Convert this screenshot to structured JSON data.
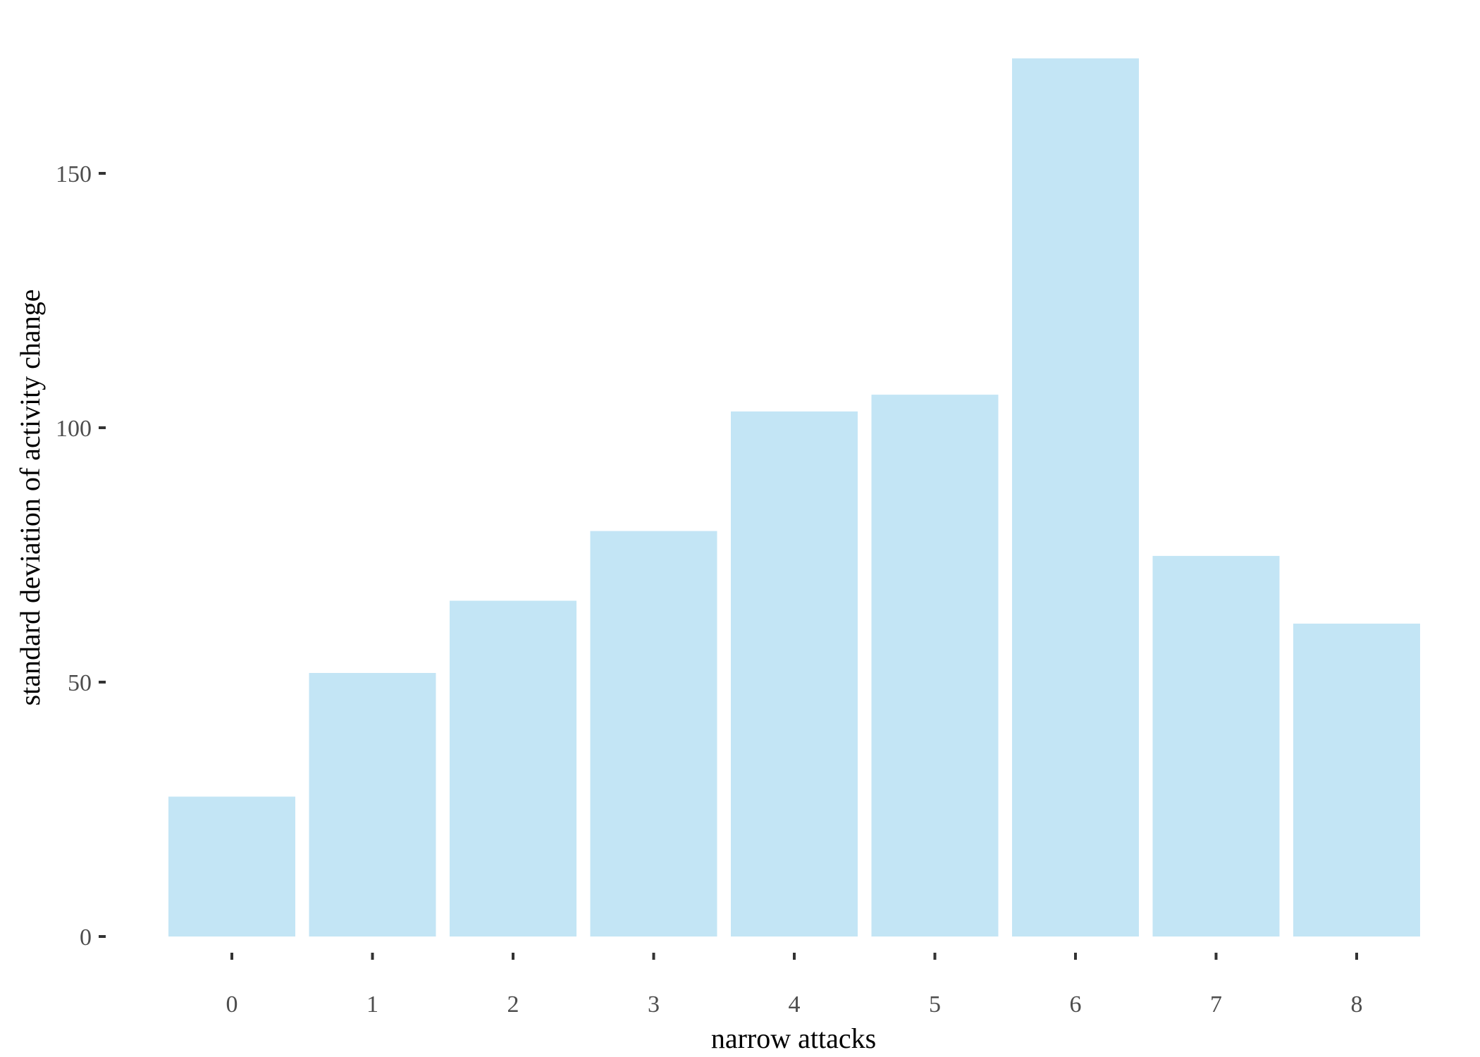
{
  "chart_data": {
    "type": "bar",
    "categories": [
      "0",
      "1",
      "2",
      "3",
      "4",
      "5",
      "6",
      "7",
      "8"
    ],
    "values": [
      27.5,
      51.8,
      66,
      79.7,
      103.2,
      106.5,
      172.6,
      74.8,
      61.5
    ],
    "title": "",
    "xlabel": "narrow attacks",
    "ylabel": "standard deviation of activity change",
    "ylim": [
      -5,
      175
    ],
    "yticks": [
      0,
      50,
      100,
      150
    ],
    "bar_color": "#c3e5f5",
    "grid": false,
    "legend": "none"
  }
}
